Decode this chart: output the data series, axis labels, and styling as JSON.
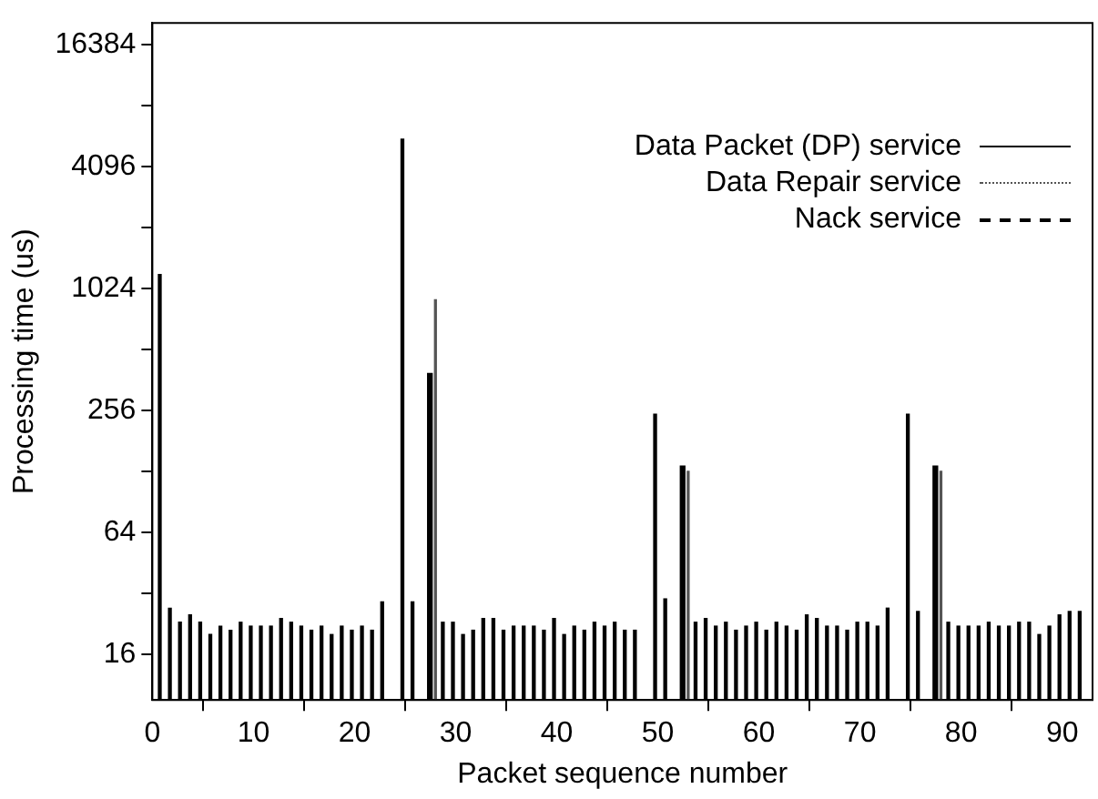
{
  "chart_data": {
    "type": "bar",
    "xlabel": "Packet sequence number",
    "ylabel": "Processing time (us)",
    "x": [
      1,
      2,
      3,
      4,
      5,
      6,
      7,
      8,
      9,
      10,
      11,
      12,
      13,
      14,
      15,
      16,
      17,
      18,
      19,
      20,
      21,
      22,
      23,
      24,
      25,
      26,
      27,
      28,
      29,
      30,
      31,
      32,
      33,
      34,
      35,
      36,
      37,
      38,
      39,
      40,
      41,
      42,
      43,
      44,
      45,
      46,
      47,
      48,
      49,
      50,
      51,
      52,
      53,
      54,
      55,
      56,
      57,
      58,
      59,
      60,
      61,
      62,
      63,
      64,
      65,
      66,
      67,
      68,
      69,
      70,
      71,
      72,
      73,
      74,
      75,
      76,
      77,
      78,
      79,
      80,
      81,
      82,
      83,
      84,
      85,
      86,
      87,
      88,
      89,
      90,
      91,
      92
    ],
    "series": [
      {
        "name": "Data Packet (DP) service",
        "color": "#000000",
        "line_style": "solid",
        "values": [
          1200,
          27,
          23,
          25,
          23,
          20,
          22,
          21,
          23,
          22,
          22,
          22,
          24,
          23,
          22,
          21,
          22,
          20,
          22,
          21,
          22,
          21,
          29,
          null,
          5600,
          29,
          null,
          null,
          23,
          23,
          20,
          21,
          24,
          24,
          21,
          22,
          22,
          22,
          21,
          24,
          20,
          22,
          21,
          23,
          22,
          23,
          21,
          21,
          null,
          245,
          30,
          null,
          null,
          23,
          24,
          22,
          23,
          21,
          22,
          23,
          21,
          23,
          22,
          21,
          25,
          24,
          22,
          22,
          21,
          23,
          23,
          22,
          27,
          null,
          245,
          26,
          null,
          null,
          23,
          22,
          22,
          22,
          23,
          22,
          22,
          23,
          23,
          20,
          22,
          25,
          26,
          26
        ]
      },
      {
        "name": "Data Repair service",
        "color": "#555555",
        "line_style": "dotted",
        "values": [
          null,
          null,
          null,
          null,
          null,
          null,
          null,
          null,
          null,
          null,
          null,
          null,
          null,
          null,
          null,
          null,
          null,
          null,
          null,
          null,
          null,
          null,
          null,
          null,
          null,
          null,
          null,
          900,
          null,
          null,
          null,
          null,
          null,
          null,
          null,
          null,
          null,
          null,
          null,
          null,
          null,
          null,
          null,
          null,
          null,
          null,
          null,
          null,
          null,
          null,
          null,
          null,
          128,
          null,
          null,
          null,
          null,
          null,
          null,
          null,
          null,
          null,
          null,
          null,
          null,
          null,
          null,
          null,
          null,
          null,
          null,
          null,
          null,
          null,
          null,
          null,
          null,
          128,
          null,
          null,
          null,
          null,
          null,
          null,
          null,
          null,
          null,
          null,
          null,
          null,
          null,
          null
        ]
      },
      {
        "name": "Nack service",
        "color": "#000000",
        "line_style": "dashed",
        "values": [
          null,
          null,
          null,
          null,
          null,
          null,
          null,
          null,
          null,
          null,
          null,
          null,
          null,
          null,
          null,
          null,
          null,
          null,
          null,
          null,
          null,
          null,
          null,
          null,
          null,
          null,
          390,
          null,
          null,
          null,
          null,
          null,
          null,
          null,
          null,
          null,
          null,
          null,
          null,
          null,
          null,
          null,
          null,
          null,
          null,
          null,
          null,
          null,
          null,
          null,
          null,
          136,
          null,
          null,
          null,
          null,
          null,
          null,
          null,
          null,
          null,
          null,
          null,
          null,
          null,
          null,
          null,
          null,
          null,
          null,
          null,
          null,
          null,
          null,
          null,
          null,
          136,
          null,
          null,
          null,
          null,
          null,
          null,
          null,
          null,
          null,
          null,
          null,
          null,
          null,
          null,
          null
        ]
      }
    ],
    "xlim": [
      0,
      93
    ],
    "xticks": [
      0,
      10,
      20,
      30,
      40,
      50,
      60,
      70,
      80,
      90
    ],
    "log": "y",
    "ylim": [
      9.5,
      21000
    ],
    "yticks": [
      16,
      {
        "value": 32,
        "label": null
      },
      64,
      {
        "value": 128,
        "label": null
      },
      256,
      {
        "value": 512,
        "label": null
      },
      1024,
      {
        "value": 2048,
        "label": null
      },
      4096,
      {
        "value": 8192,
        "label": null
      },
      16384
    ],
    "grid": false,
    "legend": "top right"
  }
}
